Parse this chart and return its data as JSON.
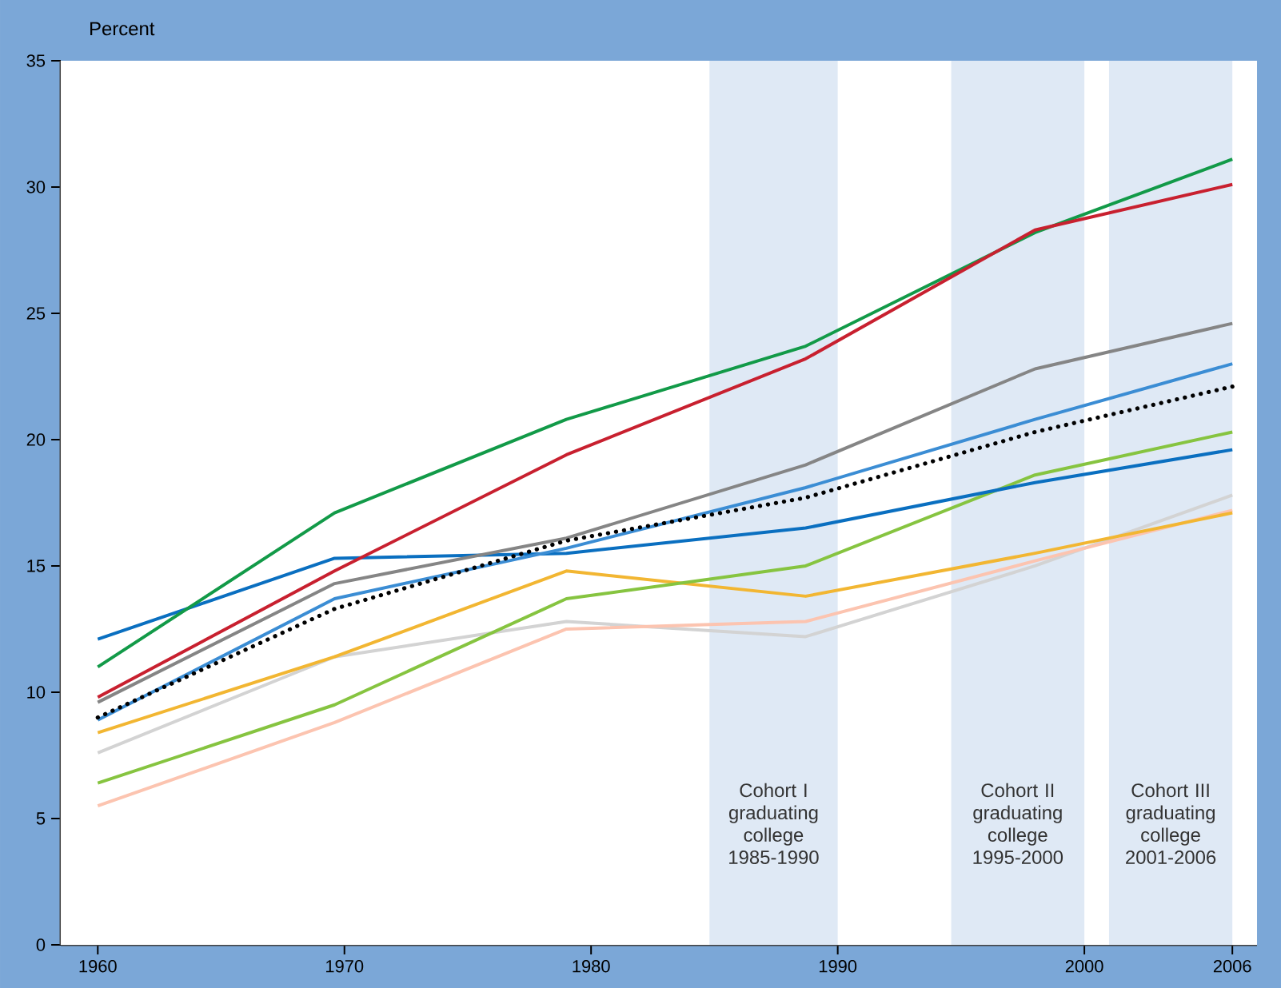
{
  "chart_data": {
    "type": "line",
    "ylabel": "Percent",
    "xlim": [
      1958.5,
      2007
    ],
    "ylim": [
      0,
      35
    ],
    "xticks": [
      1960,
      1970,
      1980,
      1990,
      2000,
      2006
    ],
    "yticks": [
      0,
      5,
      10,
      15,
      20,
      25,
      30,
      35
    ],
    "x": [
      1960,
      1969.6,
      1979,
      1988.7,
      1998,
      2006
    ],
    "bands": [
      {
        "axis": "x",
        "from": 1984.8,
        "to": 1990,
        "label": "Cohort I graduating college 1985-1990",
        "color": "#dfe9f5"
      },
      {
        "axis": "x",
        "from": 1994.6,
        "to": 2000,
        "label": "Cohort II graduating college 1995-2000",
        "color": "#dfe9f5"
      },
      {
        "axis": "x",
        "from": 2001,
        "to": 2006,
        "label": "Cohort III graduating college 2001-2006",
        "color": "#dfe9f5"
      }
    ],
    "series": [
      {
        "color": "#d3d3d3",
        "values": [
          7.6,
          11.4,
          12.8,
          12.2,
          15.0,
          17.8
        ]
      },
      {
        "color": "#fcc4b0",
        "values": [
          5.5,
          8.8,
          12.5,
          12.8,
          15.2,
          17.2
        ]
      },
      {
        "color": "#f2b632",
        "values": [
          8.4,
          11.4,
          14.8,
          13.8,
          15.5,
          17.1
        ]
      },
      {
        "color": "#86c440",
        "values": [
          6.4,
          9.5,
          13.7,
          15.0,
          18.6,
          20.3
        ]
      },
      {
        "color": "#0a6fc0",
        "values": [
          12.1,
          15.3,
          15.5,
          16.5,
          18.3,
          19.6
        ]
      },
      {
        "color": "#3b8dd4",
        "values": [
          8.9,
          13.7,
          15.7,
          18.1,
          20.8,
          23.0
        ]
      },
      {
        "color": "#858585",
        "values": [
          9.6,
          14.3,
          16.1,
          19.0,
          22.8,
          24.6
        ]
      },
      {
        "color": "#000000",
        "values": [
          9.0,
          13.3,
          16.0,
          17.7,
          20.3,
          22.1
        ],
        "line_style": "dotted"
      },
      {
        "color": "#129a48",
        "values": [
          11.0,
          17.1,
          20.8,
          23.7,
          28.2,
          31.1
        ]
      },
      {
        "color": "#c8202f",
        "values": [
          9.8,
          14.8,
          19.4,
          23.2,
          28.3,
          30.1
        ]
      }
    ]
  }
}
